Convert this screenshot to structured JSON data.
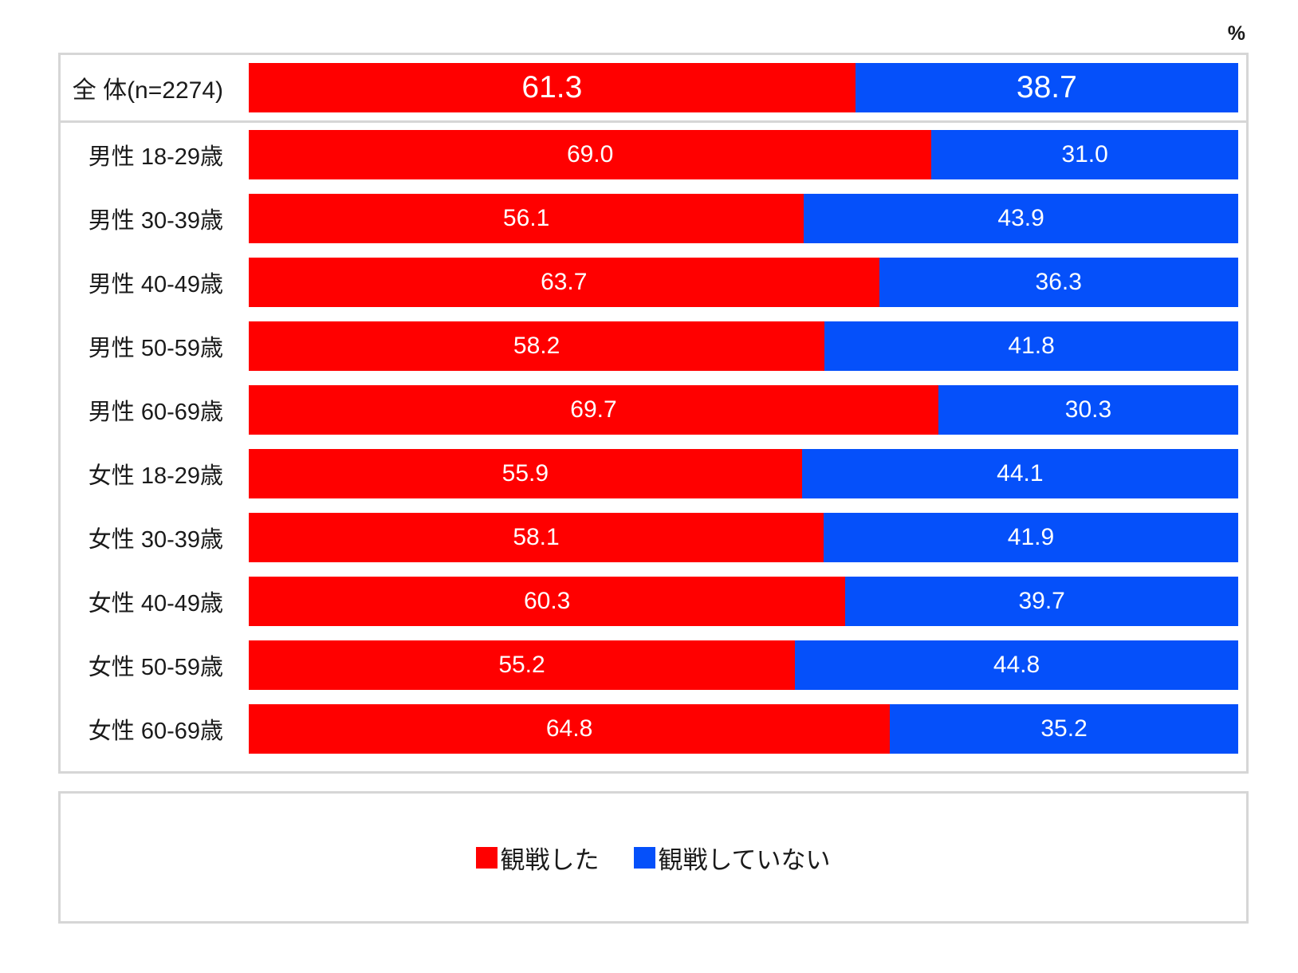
{
  "chart_data": {
    "type": "bar",
    "orientation": "horizontal-stacked",
    "unit": "%",
    "xlim": [
      0,
      100
    ],
    "grid": false,
    "value_labels": "inside-center",
    "legend_position": "bottom-box",
    "emphasized_row": 0,
    "categories": [
      "全 体(n=2274)",
      "男性 18-29歳",
      "男性 30-39歳",
      "男性 40-49歳",
      "男性 50-59歳",
      "男性 60-69歳",
      "女性 18-29歳",
      "女性 30-39歳",
      "女性 40-49歳",
      "女性 50-59歳",
      "女性 60-69歳"
    ],
    "series": [
      {
        "name": "観戦した",
        "color": "#FF0000",
        "values": [
          61.3,
          69.0,
          56.1,
          63.7,
          58.2,
          69.7,
          55.9,
          58.1,
          60.3,
          55.2,
          64.8
        ]
      },
      {
        "name": "観戦していない",
        "color": "#0550FA",
        "values": [
          38.7,
          31.0,
          43.9,
          36.3,
          41.8,
          30.3,
          44.1,
          41.9,
          39.7,
          44.8,
          35.2
        ]
      }
    ]
  }
}
